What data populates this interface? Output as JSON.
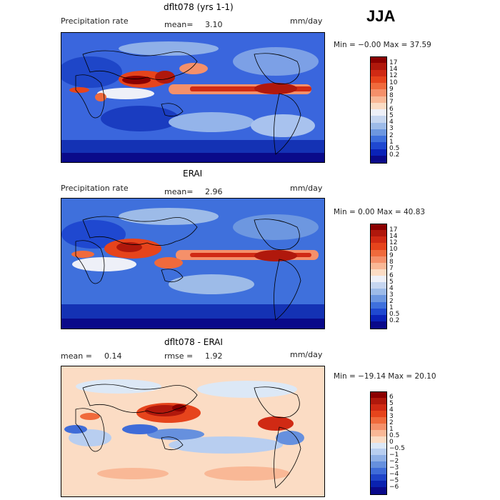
{
  "season": "JJA",
  "units": "mm/day",
  "panels": [
    {
      "title": "dflt078 (yrs 1-1)",
      "left_label": "Precipitation rate",
      "mean_label": "mean=",
      "mean_value": "3.10",
      "units": "mm/day",
      "minmax": "Min =  −0.00 Max =  37.59",
      "colorbar": "precip"
    },
    {
      "title": "ERAI",
      "left_label": "Precipitation rate",
      "mean_label": "mean=",
      "mean_value": "2.96",
      "units": "mm/day",
      "minmax": "Min =  0.00 Max =  40.83",
      "colorbar": "precip"
    },
    {
      "title": "dflt078 - ERAI",
      "mean_label": "mean =",
      "mean_value": "0.14",
      "rmse_label": "rmse =",
      "rmse_value": "1.92",
      "units": "mm/day",
      "minmax": "Min = −19.14 Max =  20.10",
      "colorbar": "diff"
    }
  ],
  "colorbars": {
    "precip": {
      "labels": [
        "17",
        "14",
        "12",
        "10",
        "9",
        "8",
        "7",
        "6",
        "5",
        "4",
        "3",
        "2",
        "1",
        "0.5",
        "0.2"
      ],
      "colors": [
        "#8b0000",
        "#b0180c",
        "#d02a14",
        "#e6441c",
        "#f06a3c",
        "#f5906a",
        "#f9b896",
        "#fbdcc4",
        "#eef0f8",
        "#c6d6f0",
        "#9dbbe8",
        "#6d97e0",
        "#3f70dc",
        "#1f48d0",
        "#0a22b8",
        "#0a0a8a"
      ]
    },
    "diff": {
      "labels": [
        "6",
        "5",
        "4",
        "3",
        "2",
        "1",
        "0.5",
        "0",
        "−0.5",
        "−1",
        "−2",
        "−3",
        "−4",
        "−5",
        "−6"
      ],
      "colors": [
        "#8b0000",
        "#b0180c",
        "#d02a14",
        "#e6441c",
        "#f06a3c",
        "#f5906a",
        "#f9b896",
        "#fbdcc4",
        "#dce8f6",
        "#b8cef0",
        "#8fb0e6",
        "#6690de",
        "#3f6cd8",
        "#1f44c8",
        "#0a22b0",
        "#0a0a8a"
      ]
    }
  }
}
